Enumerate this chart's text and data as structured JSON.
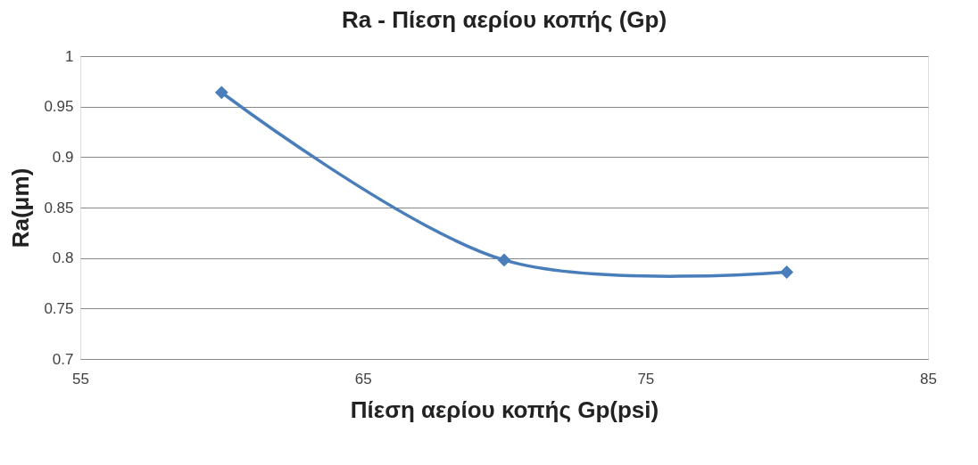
{
  "chart_data": {
    "type": "line",
    "title": "Ra - Πίεση αερίου κοπής (Gp)",
    "xlabel": "Πίεση αερίου κοπής Gp(psi)",
    "ylabel": "Ra(μm)",
    "x": [
      60,
      70,
      80
    ],
    "series": [
      {
        "color": "#4a7ebb",
        "values": [
          0.964,
          0.798,
          0.786
        ]
      }
    ],
    "xlim": [
      55,
      85
    ],
    "xticks": [
      55,
      65,
      75,
      85
    ],
    "ylim": [
      0.7,
      1
    ],
    "yticks": [
      0.7,
      0.75,
      0.8,
      0.85,
      0.9,
      0.95,
      1
    ],
    "grid": "y",
    "marker": "diamond",
    "line_style": "solid",
    "legend": false
  }
}
